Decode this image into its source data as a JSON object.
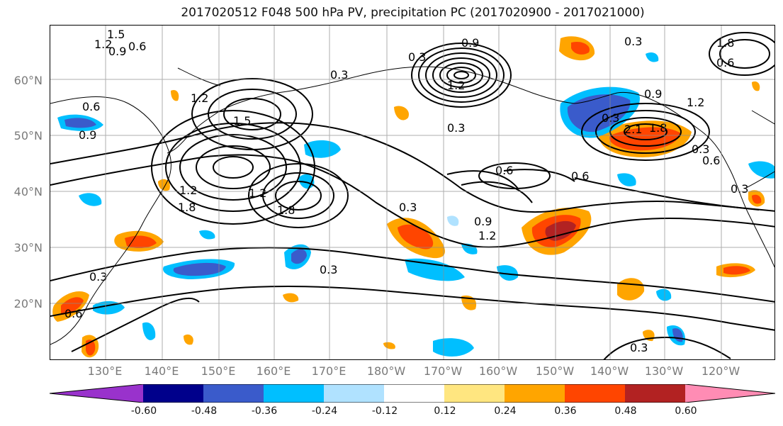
{
  "title": "2017020512 F048 500 hPa PV, precipitation PC (2017020900 - 2017021000)",
  "lat_labels": [
    "60°N",
    "50°N",
    "40°N",
    "30°N",
    "20°N"
  ],
  "lon_labels": [
    "130°E",
    "140°E",
    "150°E",
    "160°E",
    "170°E",
    "180°W",
    "170°W",
    "160°W",
    "150°W",
    "140°W",
    "130°W",
    "120°W"
  ],
  "colorbar": {
    "ticks": [
      "-0.60",
      "-0.48",
      "-0.36",
      "-0.24",
      "-0.12",
      "0.12",
      "0.24",
      "0.36",
      "0.48",
      "0.60"
    ],
    "colors": [
      "#9932cc",
      "#00008b",
      "#3a5bcb",
      "#00bfff",
      "#b0e2ff",
      "#ffffff",
      "#ffe680",
      "#ffa500",
      "#ff4500",
      "#b22222",
      "#ff8cb4"
    ]
  },
  "contour_labels": [
    "1.5",
    "1.2",
    "0.9",
    "0.6",
    "0.3",
    "0.6",
    "0.3",
    "1.2",
    "1.5",
    "0.9",
    "0.3",
    "1.2",
    "1.8",
    "1.2",
    "1.8",
    "0.6",
    "0.3",
    "0.9",
    "1.2",
    "0.6",
    "0.6",
    "0.3",
    "0.3",
    "0.3",
    "0.6",
    "0.3",
    "0.3",
    "0.9",
    "1.2",
    "2.1",
    "1.8",
    "0.6",
    "0.3",
    "0.3",
    "1.8",
    "1.2",
    "0.9"
  ]
}
